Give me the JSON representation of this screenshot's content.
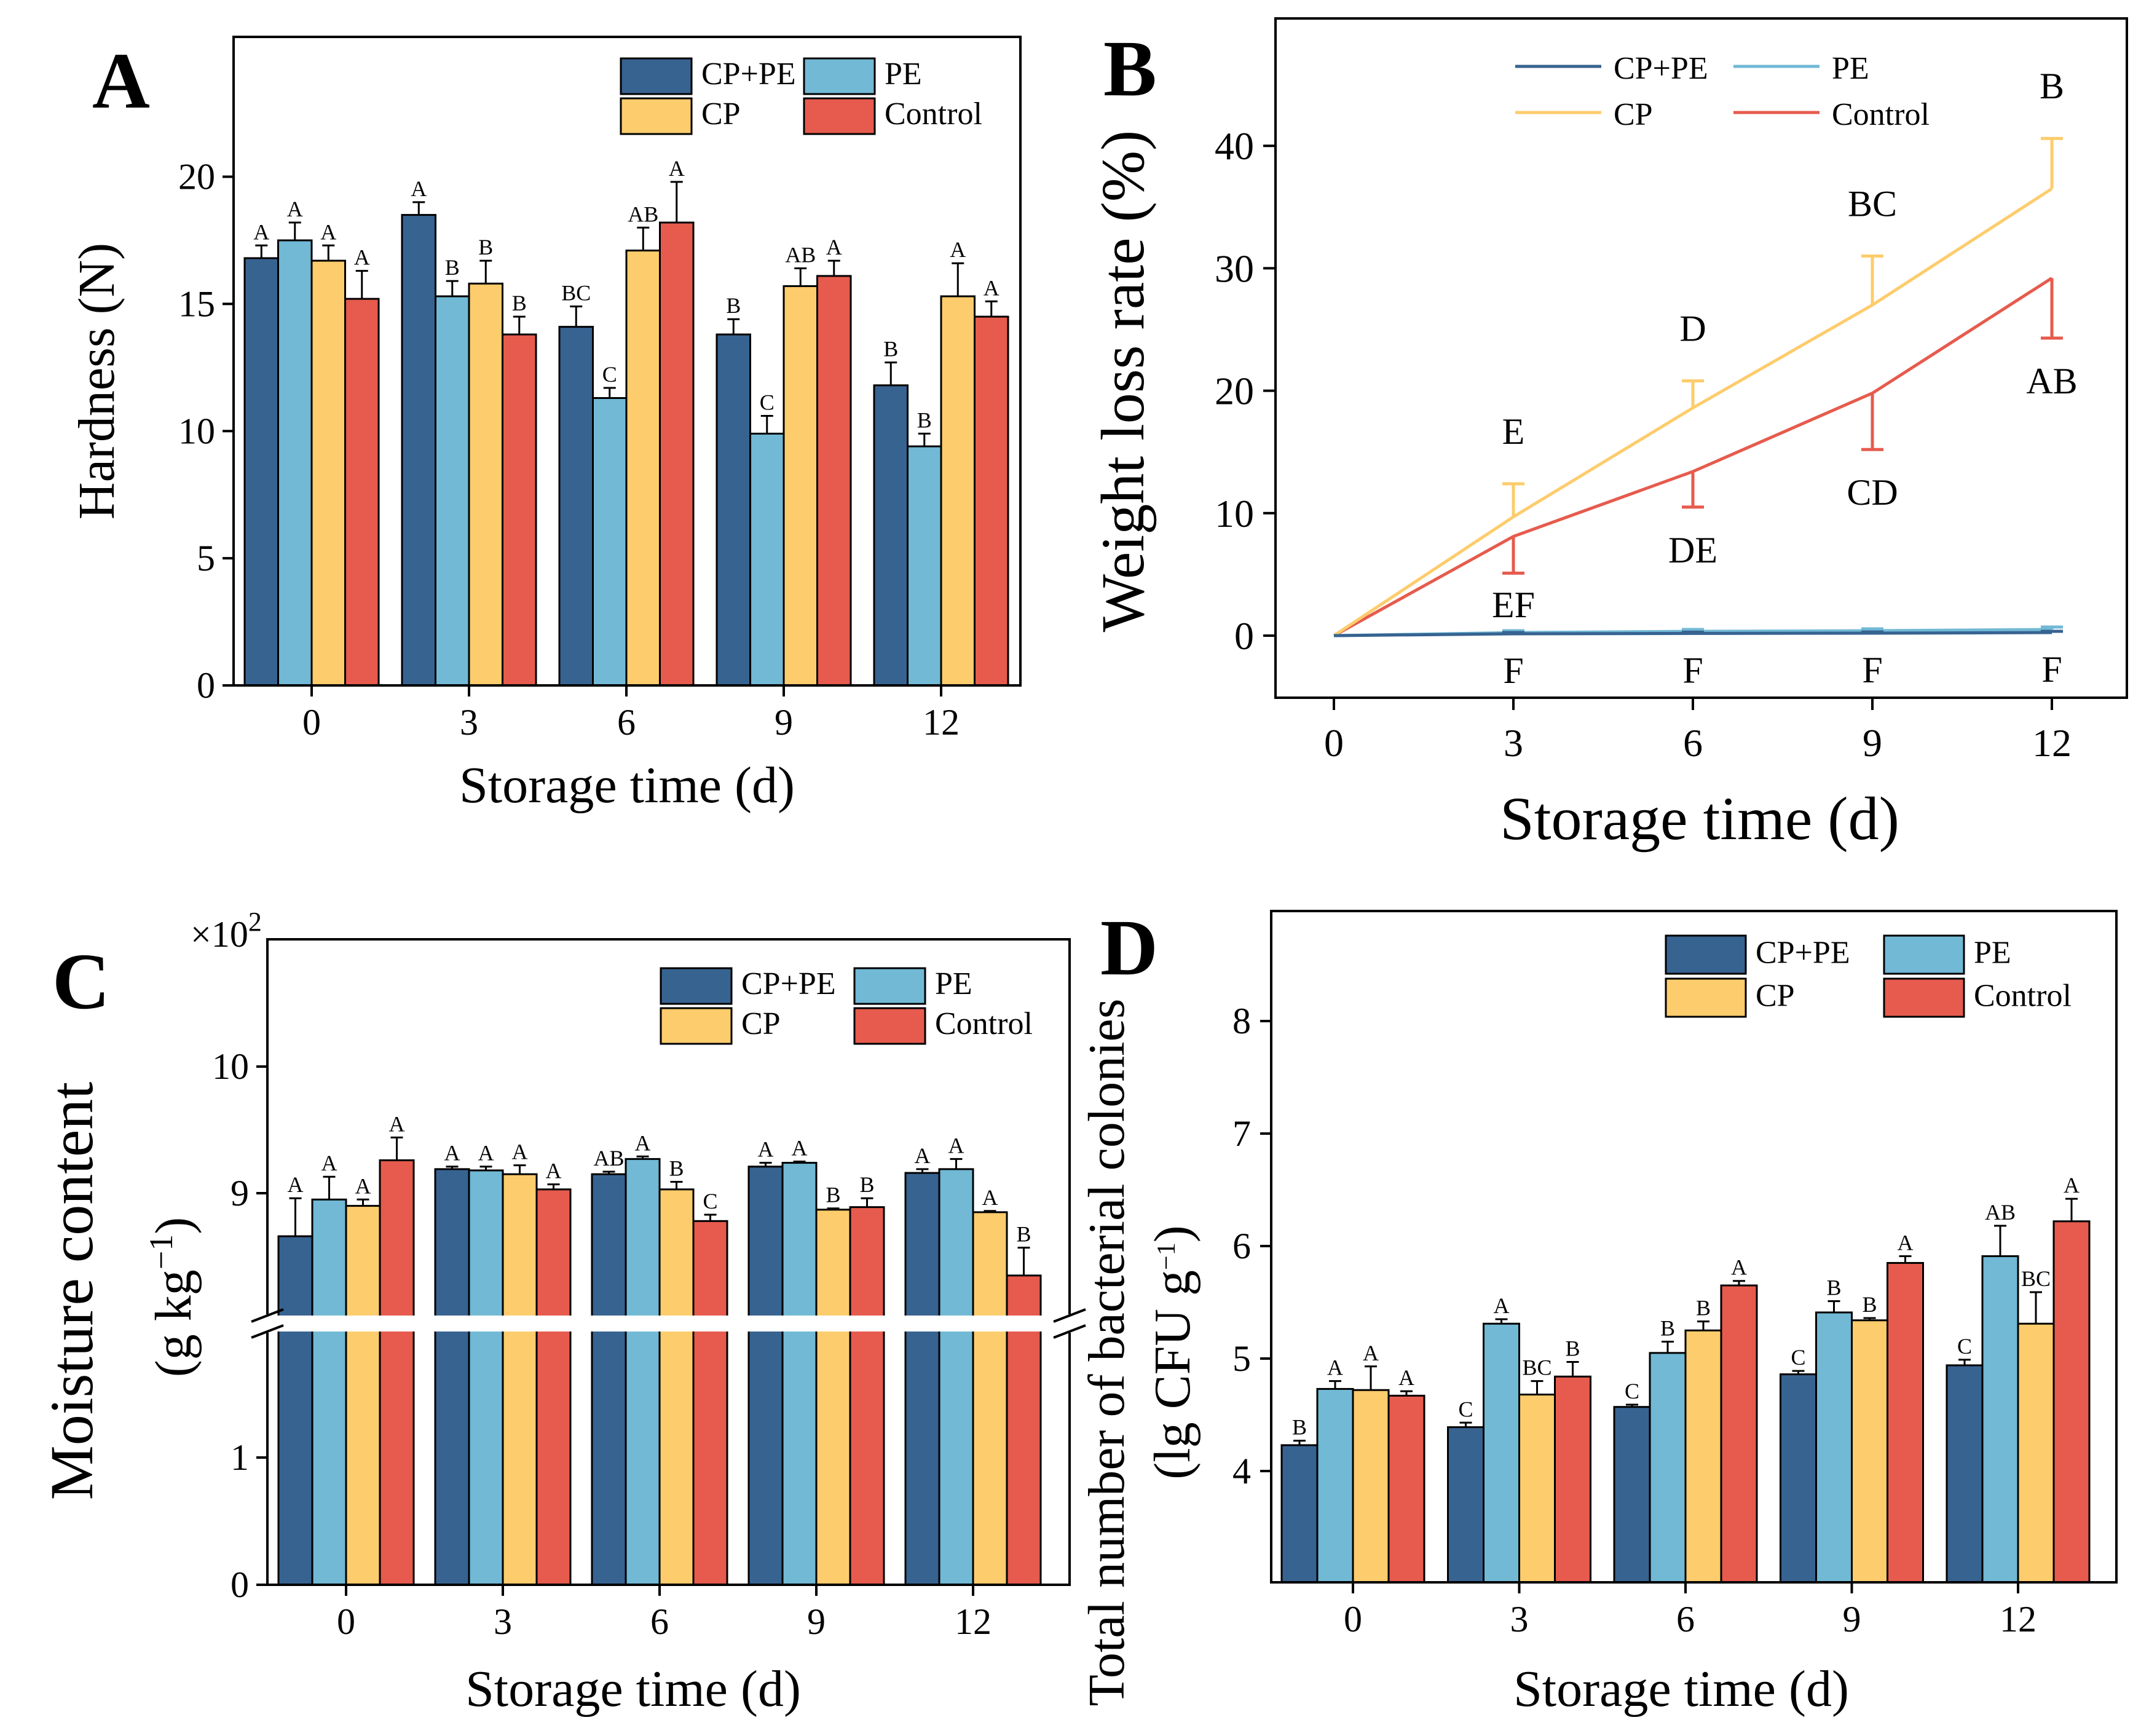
{
  "colors": {
    "CP+PE": "#376391",
    "PE": "#71b9d5",
    "CP": "#fdcc6c",
    "Control": "#e65b4d"
  },
  "chart_data": [
    {
      "panel": "A",
      "type": "bar",
      "xlabel": "Storage time (d)",
      "ylabel": "Hardness (N)",
      "categories": [
        "0",
        "3",
        "6",
        "9",
        "12"
      ],
      "ylim": [
        0,
        25.5
      ],
      "yticks": [
        "0",
        "5",
        "10",
        "15",
        "20"
      ],
      "legend": [
        "CP+PE",
        "PE",
        "CP",
        "Control"
      ],
      "series": [
        {
          "name": "CP+PE",
          "values": [
            16.8,
            18.5,
            14.1,
            13.8,
            11.8
          ],
          "err": [
            0.5,
            0.5,
            0.8,
            0.6,
            0.9
          ],
          "sig": [
            "A",
            "A",
            "BC",
            "B",
            "B"
          ]
        },
        {
          "name": "PE",
          "values": [
            17.5,
            15.3,
            11.3,
            9.9,
            9.4
          ],
          "err": [
            0.7,
            0.6,
            0.4,
            0.7,
            0.5
          ],
          "sig": [
            "A",
            "B",
            "C",
            "C",
            "B"
          ]
        },
        {
          "name": "CP",
          "values": [
            16.7,
            15.8,
            17.1,
            15.7,
            15.3
          ],
          "err": [
            0.6,
            0.9,
            0.9,
            0.7,
            1.3
          ],
          "sig": [
            "A",
            "B",
            "AB",
            "AB",
            "A"
          ]
        },
        {
          "name": "Control",
          "values": [
            15.2,
            13.8,
            18.2,
            16.1,
            14.5
          ],
          "err": [
            1.1,
            0.7,
            1.6,
            0.6,
            0.6
          ],
          "sig": [
            "A",
            "B",
            "A",
            "A",
            "A"
          ]
        }
      ]
    },
    {
      "panel": "B",
      "type": "line",
      "xlabel": "Storage time (d)",
      "ylabel": "Weight loss rate (%)",
      "x": [
        0,
        3,
        6,
        9,
        12
      ],
      "xticks": [
        "0",
        "3",
        "6",
        "9",
        "12"
      ],
      "ylim": [
        -5,
        50
      ],
      "yticks": [
        "0",
        "10",
        "20",
        "30",
        "40"
      ],
      "legend": [
        "CP+PE",
        "PE",
        "CP",
        "Control"
      ],
      "series": [
        {
          "name": "CP+PE",
          "values": [
            0,
            0.15,
            0.18,
            0.2,
            0.25
          ],
          "err": [
            0,
            0.1,
            0.1,
            0.1,
            0.1
          ],
          "err_dir": "up",
          "sig": [
            "",
            "F",
            "F",
            "F",
            "F"
          ]
        },
        {
          "name": "PE",
          "values": [
            0,
            0.25,
            0.35,
            0.4,
            0.5
          ],
          "err": [
            0,
            0.15,
            0.15,
            0.15,
            0.2
          ],
          "err_dir": "up",
          "sig": [
            "",
            "EF",
            "",
            "",
            ""
          ]
        },
        {
          "name": "CP",
          "values": [
            0,
            9.7,
            18.6,
            27.0,
            36.5
          ],
          "err": [
            0,
            2.7,
            2.2,
            4.0,
            4.1
          ],
          "err_dir": "up",
          "sig": [
            "",
            "E",
            "D",
            "BC",
            "B"
          ]
        },
        {
          "name": "Control",
          "values": [
            0,
            8.1,
            13.4,
            19.8,
            29.2
          ],
          "err": [
            0,
            3.0,
            2.9,
            4.6,
            4.9
          ],
          "err_dir": "down",
          "sig": [
            "",
            "",
            "DE",
            "CD",
            "AB"
          ]
        }
      ]
    },
    {
      "panel": "C",
      "type": "bar",
      "xlabel": "Storage time (d)",
      "ylabel": "Moisture content",
      "ylabel2": "(g kg",
      "ylabel2_sup": "−1",
      "ylabel2_end": ")",
      "multiplier": "×10",
      "multiplier_sup": "2",
      "categories": [
        "0",
        "3",
        "6",
        "9",
        "12"
      ],
      "y_break": [
        2,
        8
      ],
      "lower_ylim": [
        0,
        2
      ],
      "upper_ylim": [
        8,
        11
      ],
      "yticks": [
        "0",
        "1",
        "9",
        "10"
      ],
      "legend": [
        "CP+PE",
        "PE",
        "CP",
        "Control"
      ],
      "series": [
        {
          "name": "CP+PE",
          "values": [
            8.66,
            9.19,
            9.15,
            9.21,
            9.16
          ],
          "err": [
            0.3,
            0.02,
            0.02,
            0.03,
            0.03
          ],
          "sig": [
            "A",
            "A",
            "AB",
            "A",
            "A"
          ]
        },
        {
          "name": "PE",
          "values": [
            8.95,
            9.18,
            9.27,
            9.24,
            9.19
          ],
          "err": [
            0.18,
            0.03,
            0.02,
            0.01,
            0.08
          ],
          "sig": [
            "A",
            "A",
            "A",
            "A",
            "A"
          ]
        },
        {
          "name": "CP",
          "values": [
            8.9,
            9.15,
            9.03,
            8.87,
            8.85
          ],
          "err": [
            0.05,
            0.07,
            0.06,
            0.01,
            0.01
          ],
          "sig": [
            "A",
            "A",
            "B",
            "B",
            "A"
          ]
        },
        {
          "name": "Control",
          "values": [
            9.26,
            9.03,
            8.78,
            8.89,
            8.35
          ],
          "err": [
            0.18,
            0.04,
            0.05,
            0.07,
            0.22
          ],
          "sig": [
            "A",
            "A",
            "C",
            "B",
            "B"
          ]
        }
      ]
    },
    {
      "panel": "D",
      "type": "bar",
      "xlabel": "Storage time (d)",
      "ylabel": "Total number of bacterial colonies",
      "ylabel2": "(lg CFU g",
      "ylabel2_sup": "−1",
      "ylabel2_end": ")",
      "categories": [
        "0",
        "3",
        "6",
        "9",
        "12"
      ],
      "ylim": [
        3,
        9
      ],
      "yticks": [
        "4",
        "5",
        "6",
        "7",
        "8"
      ],
      "legend": [
        "CP+PE",
        "PE",
        "CP",
        "Control"
      ],
      "series": [
        {
          "name": "CP+PE",
          "values": [
            4.23,
            4.39,
            4.57,
            4.86,
            4.94
          ],
          "err": [
            0.04,
            0.04,
            0.02,
            0.03,
            0.05
          ],
          "sig": [
            "B",
            "C",
            "C",
            "C",
            "C"
          ]
        },
        {
          "name": "PE",
          "values": [
            4.73,
            5.31,
            5.05,
            5.41,
            5.91
          ],
          "err": [
            0.07,
            0.04,
            0.1,
            0.1,
            0.27
          ],
          "sig": [
            "A",
            "A",
            "B",
            "B",
            "AB"
          ]
        },
        {
          "name": "CP",
          "values": [
            4.72,
            4.68,
            5.25,
            5.34,
            5.31
          ],
          "err": [
            0.21,
            0.12,
            0.08,
            0.02,
            0.28
          ],
          "sig": [
            "A",
            "BC",
            "B",
            "B",
            "BC"
          ]
        },
        {
          "name": "Control",
          "values": [
            4.67,
            4.84,
            5.65,
            5.85,
            6.22
          ],
          "err": [
            0.04,
            0.13,
            0.04,
            0.06,
            0.2
          ],
          "sig": [
            "A",
            "B",
            "A",
            "A",
            "A"
          ]
        }
      ]
    }
  ]
}
